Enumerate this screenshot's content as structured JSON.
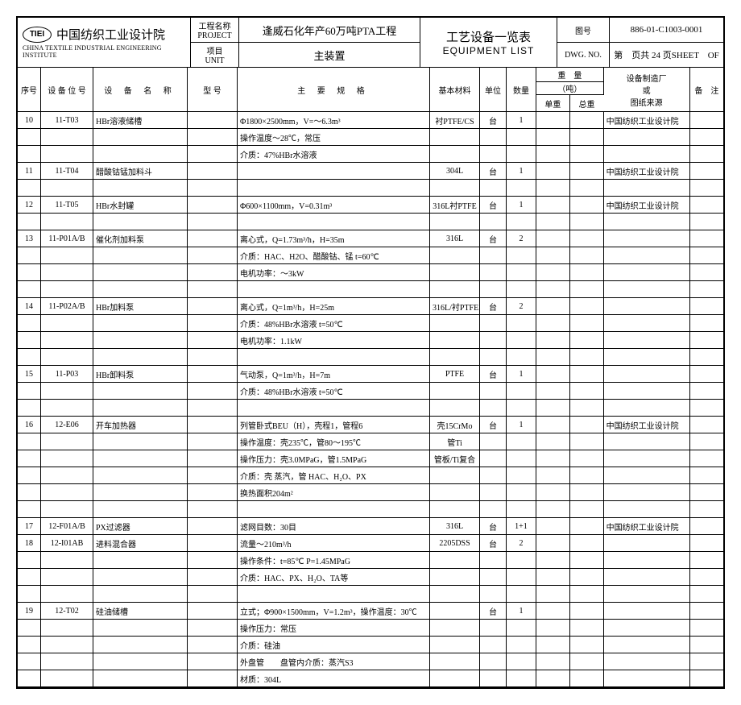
{
  "header": {
    "org_cn": "中国纺织工业设计院",
    "org_en": "CHINA TEXTILE INDUSTRIAL ENGINEERING INSTITUTE",
    "badge": "TIEI",
    "project_label_cn": "工程名称",
    "project_label_en": "PROJECT",
    "unit_label_cn": "项目",
    "unit_label_en": "UNIT",
    "project_name": "逢威石化年产60万吨PTA工程",
    "unit_name": "主装置",
    "title_cn": "工艺设备一览表",
    "title_en": "EQUIPMENT LIST",
    "dwg_label_cn": "图号",
    "dwg_label_en": "DWG. NO.",
    "dwg_no": "886-01-C1003-0001",
    "sheet_info": "第　页共 24 页SHEET　OF"
  },
  "cols": {
    "seq": "序号",
    "pos": "设 备 位 号",
    "name": "设 备 名 称",
    "model": "型 号",
    "spec": "主 要 规 格",
    "material": "基本材料",
    "unit": "单位",
    "qty": "数量",
    "weight": "重　量",
    "weight_sub": "（吨）",
    "w_unit": "单重",
    "w_total": "总重",
    "mfg": "设备制造厂",
    "mfg2": "或",
    "mfg3": "图纸来源",
    "note": "备　注"
  },
  "rows": [
    {
      "seq": "10",
      "pos": "11-T03",
      "name": "HBr溶液储槽",
      "spec": "Φ1800×2500mm，V=～6.3m³",
      "mat": "衬PTFE/CS",
      "unit": "台",
      "qty": "1",
      "mfg": "中国纺织工业设计院"
    },
    {
      "spec": "操作温度～28℃，常压"
    },
    {
      "spec": "介质：47%HBr水溶液"
    },
    {
      "seq": "11",
      "pos": "11-T04",
      "name": "醋酸钴锰加料斗",
      "mat": "304L",
      "unit": "台",
      "qty": "1",
      "mfg": "中国纺织工业设计院"
    },
    {
      "blank": true
    },
    {
      "seq": "12",
      "pos": "11-T05",
      "name": "HBr水封罐",
      "spec": "Φ600×1100mm，V=0.31m³",
      "mat": "316L衬PTFE",
      "unit": "台",
      "qty": "1",
      "mfg": "中国纺织工业设计院"
    },
    {
      "blank": true
    },
    {
      "seq": "13",
      "pos": "11-P01A/B",
      "name": "催化剂加料泵",
      "spec": "离心式，Q=1.73m³/h，H=35m",
      "mat": "316L",
      "unit": "台",
      "qty": "2"
    },
    {
      "spec": "介质：HAC、H2O、醋酸钴、锰 t=60℃"
    },
    {
      "spec": "电机功率：～3kW"
    },
    {
      "blank": true
    },
    {
      "seq": "14",
      "pos": "11-P02A/B",
      "name": "HBr加料泵",
      "spec": "离心式，Q=1m³/h，H=25m",
      "mat": "316L/衬PTFE",
      "unit": "台",
      "qty": "2"
    },
    {
      "spec": "介质：48%HBr水溶液 t=50℃"
    },
    {
      "spec": "电机功率：1.1kW"
    },
    {
      "blank": true
    },
    {
      "seq": "15",
      "pos": "11-P03",
      "name": "HBr卸料泵",
      "spec": "气动泵，Q=1m³/h，H=7m",
      "mat": "PTFE",
      "unit": "台",
      "qty": "1"
    },
    {
      "spec": "介质：48%HBr水溶液 t=50℃"
    },
    {
      "blank": true
    },
    {
      "seq": "16",
      "pos": "12-E06",
      "name": "开车加热器",
      "spec": "列管卧式BEU（H），壳程1，管程6",
      "mat": "壳15CrMo",
      "unit": "台",
      "qty": "1",
      "mfg": "中国纺织工业设计院"
    },
    {
      "spec": "操作温度：壳235℃，管80～195℃",
      "mat": "管Ti"
    },
    {
      "spec": "操作压力：壳3.0MPaG，管1.5MPaG",
      "mat": "管板/Ti复合"
    },
    {
      "spec": "介质：壳 蒸汽，管 HAC、H₂O、PX"
    },
    {
      "spec": "换热面积204m²"
    },
    {
      "blank": true
    },
    {
      "seq": "17",
      "pos": "12-F01A/B",
      "name": "PX过滤器",
      "spec": "滤网目数：30目",
      "mat": "316L",
      "unit": "台",
      "qty": "1+1",
      "mfg": "中国纺织工业设计院"
    },
    {
      "seq": "18",
      "pos": "12-I01AB",
      "name": "进料混合器",
      "spec": "流量～210m³/h",
      "mat": "2205DSS",
      "unit": "台",
      "qty": "2"
    },
    {
      "spec": "操作条件：t=85℃ P=1.45MPaG"
    },
    {
      "spec": "介质：HAC、PX、H₂O、TA等"
    },
    {
      "blank": true
    },
    {
      "seq": "19",
      "pos": "12-T02",
      "name": "硅油储槽",
      "spec": "立式；Φ900×1500mm，V=1.2m³，操作温度：30℃",
      "unit": "台",
      "qty": "1"
    },
    {
      "spec": "操作压力：常压"
    },
    {
      "spec": "介质：硅油"
    },
    {
      "spec": "外盘管　　盘管内介质：蒸汽S3"
    },
    {
      "spec": "材质：304L"
    }
  ]
}
